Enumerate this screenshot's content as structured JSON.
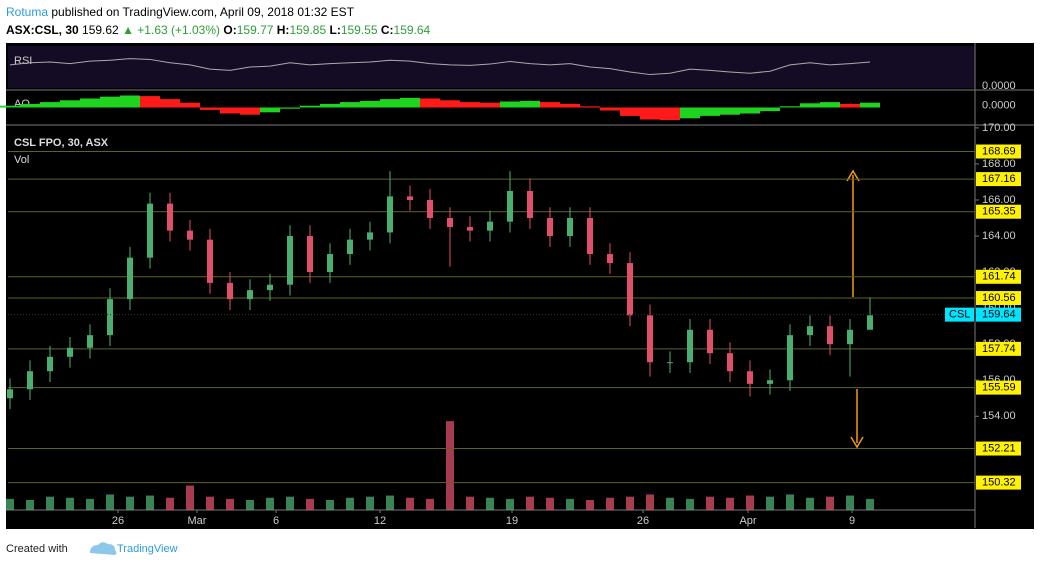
{
  "header": {
    "author": "Rotuma",
    "published": "published on TradingView.com, April 09, 2018 01:32 EST",
    "symbol": "ASX:CSL, 30",
    "last": "159.62",
    "change": "+1.63 (+1.03%)",
    "o_label": "O:",
    "open": "159.77",
    "h_label": "H:",
    "high": "159.85",
    "l_label": "L:",
    "low": "159.55",
    "c_label": "C:",
    "close": "159.64"
  },
  "footer": {
    "created": "Created with",
    "brand": "TradingView"
  },
  "chart_data": {
    "type": "candlestick",
    "title": "CSL FPO, 30, ASX",
    "volume_label": "Vol",
    "symbol_tag": "CSL",
    "last_price": 159.64,
    "open": [
      155.0,
      155.5,
      156.5,
      157.3,
      157.8,
      158.5,
      160.5,
      162.8,
      165.8,
      164.3,
      163.8,
      161.4,
      160.5,
      161.0,
      161.3,
      164.0,
      162.0,
      163.0,
      163.8,
      164.2,
      166.2,
      166.0,
      165.0,
      164.5,
      164.3,
      164.8,
      166.5,
      165.0,
      164.0,
      165.0,
      163.0,
      162.5,
      159.6,
      157.0,
      157.0,
      158.8,
      157.5,
      156.5,
      155.8,
      156.0,
      158.5,
      159.0,
      158.0,
      158.8
    ],
    "high": [
      156.1,
      157.1,
      157.9,
      158.4,
      159.1,
      161.1,
      163.4,
      166.4,
      166.4,
      164.9,
      164.4,
      162.0,
      161.6,
      161.9,
      164.6,
      164.6,
      163.6,
      164.4,
      164.8,
      167.6,
      166.8,
      166.6,
      165.6,
      165.1,
      165.4,
      167.6,
      167.2,
      165.6,
      165.6,
      165.6,
      163.6,
      163.1,
      160.2,
      157.6,
      159.4,
      159.4,
      158.1,
      157.1,
      156.6,
      159.1,
      159.6,
      159.6,
      159.4,
      160.6
    ],
    "low": [
      154.4,
      154.9,
      155.9,
      156.7,
      157.2,
      157.9,
      159.9,
      162.2,
      163.7,
      163.2,
      160.8,
      159.9,
      159.9,
      160.4,
      160.7,
      161.4,
      161.4,
      162.4,
      163.2,
      163.6,
      165.4,
      164.4,
      162.3,
      163.7,
      163.7,
      164.2,
      164.4,
      163.4,
      163.4,
      162.4,
      161.9,
      159.0,
      156.2,
      156.4,
      156.4,
      156.9,
      155.9,
      155.1,
      155.2,
      155.4,
      157.9,
      157.4,
      156.2,
      158.9
    ],
    "close": [
      155.5,
      156.5,
      157.3,
      157.8,
      158.5,
      160.5,
      162.8,
      165.8,
      164.3,
      163.8,
      161.4,
      160.5,
      161.0,
      161.3,
      164.0,
      162.0,
      163.0,
      163.8,
      164.2,
      166.2,
      166.0,
      165.0,
      164.5,
      164.3,
      164.8,
      166.5,
      165.0,
      164.0,
      165.0,
      163.0,
      162.5,
      159.6,
      157.0,
      157.0,
      158.8,
      157.5,
      156.5,
      155.8,
      156.0,
      158.5,
      159.0,
      158.0,
      158.8,
      159.6
    ],
    "volume": [
      50,
      45,
      60,
      55,
      50,
      70,
      60,
      65,
      55,
      110,
      60,
      50,
      45,
      55,
      60,
      50,
      45,
      55,
      60,
      65,
      55,
      50,
      400,
      60,
      55,
      50,
      60,
      55,
      50,
      45,
      55,
      60,
      70,
      55,
      50,
      60,
      55,
      65,
      60,
      70,
      55,
      60,
      65,
      50
    ],
    "vlim": [
      0,
      450
    ],
    "rsi": [
      55,
      60,
      62,
      58,
      64,
      66,
      70,
      68,
      60,
      55,
      45,
      42,
      50,
      52,
      60,
      55,
      58,
      60,
      62,
      66,
      64,
      58,
      55,
      54,
      57,
      63,
      58,
      55,
      58,
      50,
      46,
      38,
      32,
      35,
      45,
      42,
      38,
      35,
      40,
      55,
      60,
      55,
      58,
      62
    ],
    "rsi_lim": [
      0,
      100
    ],
    "rsi_label": "RSI",
    "rsi_ticks": [
      {
        "value": 0,
        "label": "0.0000"
      }
    ],
    "ao": [
      0.3,
      0.6,
      0.9,
      1.2,
      1.5,
      1.8,
      2.0,
      1.9,
      1.4,
      0.8,
      -0.4,
      -1.0,
      -1.2,
      -0.8,
      -0.2,
      0.3,
      0.6,
      0.9,
      1.1,
      1.4,
      1.6,
      1.5,
      1.2,
      0.9,
      0.8,
      1.0,
      1.1,
      0.9,
      0.6,
      0.2,
      -0.5,
      -1.4,
      -2.0,
      -2.1,
      -1.8,
      -1.4,
      -1.2,
      -1.0,
      -0.6,
      0.2,
      0.7,
      0.9,
      0.6,
      0.8
    ],
    "ao_lim": [
      -2.5,
      2.5
    ],
    "ao_label": "AO",
    "ao_ticks": [
      {
        "value": 0,
        "label": "0.0000"
      }
    ],
    "xlim": [
      -0.1,
      48.25
    ],
    "xticks": [
      {
        "value": 5.4,
        "label": "26"
      },
      {
        "value": 9.35,
        "label": "Mar"
      },
      {
        "value": 13.3,
        "label": "6"
      },
      {
        "value": 18.5,
        "label": "12"
      },
      {
        "value": 25.1,
        "label": "19"
      },
      {
        "value": 31.65,
        "label": "26"
      },
      {
        "value": 36.9,
        "label": "Apr"
      },
      {
        "value": 42.1,
        "label": "9"
      }
    ],
    "ylim": [
      148.8,
      170.05
    ],
    "yticks": [
      {
        "value": 154,
        "label": "154.00"
      },
      {
        "value": 156,
        "label": "156.00"
      },
      {
        "value": 158,
        "label": "158.00"
      },
      {
        "value": 160,
        "label": "160.00"
      },
      {
        "value": 162,
        "label": "162.00"
      },
      {
        "value": 164,
        "label": "164.00"
      },
      {
        "value": 166,
        "label": "166.00"
      },
      {
        "value": 168,
        "label": "168.00"
      },
      {
        "value": 170,
        "label": "170.00"
      }
    ],
    "levels": [
      168.69,
      167.16,
      165.35,
      161.74,
      160.56,
      157.74,
      155.59,
      152.21,
      150.32
    ],
    "up_color": "#4caf72",
    "down_color": "#e0506a",
    "level_color": "#5d6420",
    "label_color": "#fff200",
    "tag_color": "#00e5ff"
  }
}
